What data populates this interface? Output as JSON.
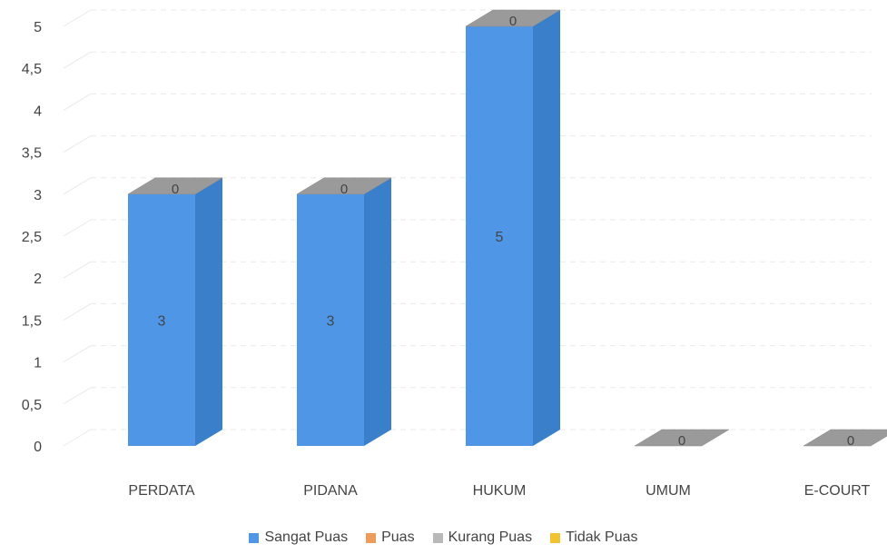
{
  "colors": {
    "sangat_puas": "#4f97e6",
    "puas": "#ef9b5a",
    "kurang_puas": "#b9b9b9",
    "tidak_puas": "#f1c232",
    "axis_text": "#444444",
    "grid": "#e9e9e9"
  },
  "chart_data": {
    "type": "bar",
    "stacked": true,
    "three_d": true,
    "title": "",
    "xlabel": "",
    "ylabel": "",
    "categories": [
      "PERDATA",
      "PIDANA",
      "HUKUM",
      "UMUM",
      "E-COURT"
    ],
    "ylim": [
      0,
      5
    ],
    "y_ticks": [
      "0",
      "0,5",
      "1",
      "1,5",
      "2",
      "2,5",
      "3",
      "3,5",
      "4",
      "4,5",
      "5"
    ],
    "grid": true,
    "legend_position": "bottom",
    "series": [
      {
        "name": "Sangat Puas",
        "values": [
          3,
          3,
          5,
          0,
          0
        ]
      },
      {
        "name": "Puas",
        "values": [
          0,
          0,
          0,
          0,
          0
        ]
      },
      {
        "name": "Kurang Puas",
        "values": [
          0,
          0,
          0,
          0,
          0
        ]
      },
      {
        "name": "Tidak Puas",
        "values": [
          0,
          0,
          0,
          0,
          0
        ]
      }
    ],
    "data_labels": {
      "Sangat Puas": [
        "3",
        "3",
        "5",
        "",
        ""
      ],
      "Kurang Puas": [
        "0",
        "0",
        "0",
        "0",
        "0"
      ]
    }
  }
}
